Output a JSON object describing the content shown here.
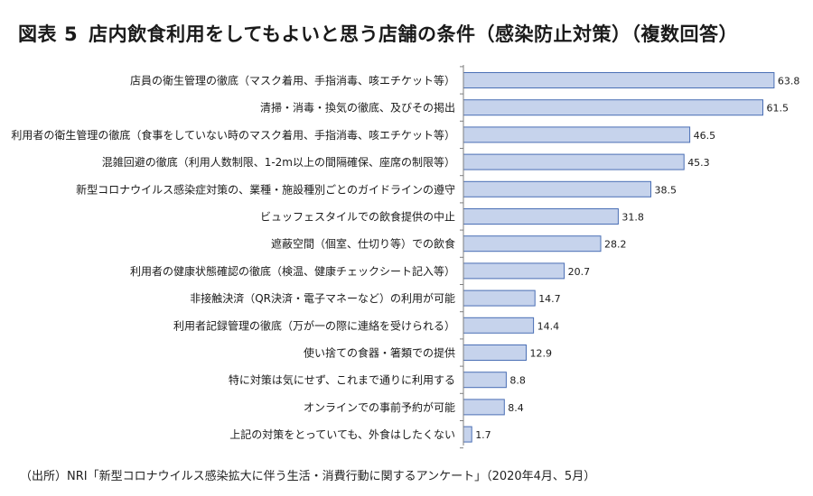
{
  "title": {
    "label": "図表",
    "number": "5",
    "text": "店内飲食利用をしてもよいと思う店舗の条件（感染防止対策）（複数回答）"
  },
  "source": "（出所）NRI「新型コロナウイルス感染拡大に伴う生活・消費行動に関するアンケート」（2020年4月、5月）",
  "colors": {
    "bar_fill": "#c6d3ec",
    "bar_stroke": "#4a6fb5",
    "axis": "#7f7f7f"
  },
  "chart_data": {
    "type": "bar",
    "orientation": "horizontal",
    "title": "店内飲食利用をしてもよいと思う店舗の条件（感染防止対策）（複数回答）",
    "xlabel": "",
    "ylabel": "",
    "xlim": [
      0,
      70
    ],
    "grid": false,
    "categories": [
      "店員の衛生管理の徹底（マスク着用、手指消毒、咳エチケット等）",
      "清掃・消毒・換気の徹底、及びその掲出",
      "利用者の衛生管理の徹底（食事をしていない時のマスク着用、手指消毒、咳エチケット等）",
      "混雑回避の徹底（利用人数制限、1-2m以上の間隔確保、座席の制限等）",
      "新型コロナウイルス感染症対策の、業種・施設種別ごとのガイドラインの遵守",
      "ビュッフェスタイルでの飲食提供の中止",
      "遮蔽空間（個室、仕切り等）での飲食",
      "利用者の健康状態確認の徹底（検温、健康チェックシート記入等）",
      "非接触決済（QR決済・電子マネーなど）の利用が可能",
      "利用者記録管理の徹底（万が一の際に連絡を受けられる）",
      "使い捨ての食器・箸類での提供",
      "特に対策は気にせず、これまで通りに利用する",
      "オンラインでの事前予約が可能",
      "上記の対策をとっていても、外食はしたくない"
    ],
    "values": [
      63.8,
      61.5,
      46.5,
      45.3,
      38.5,
      31.8,
      28.2,
      20.7,
      14.7,
      14.4,
      12.9,
      8.8,
      8.4,
      1.7
    ],
    "value_labels": [
      "63.8",
      "61.5",
      "46.5",
      "45.3",
      "38.5",
      "31.8",
      "28.2",
      "20.7",
      "14.7",
      "14.4",
      "12.9",
      "8.8",
      "8.4",
      "1.7"
    ]
  }
}
